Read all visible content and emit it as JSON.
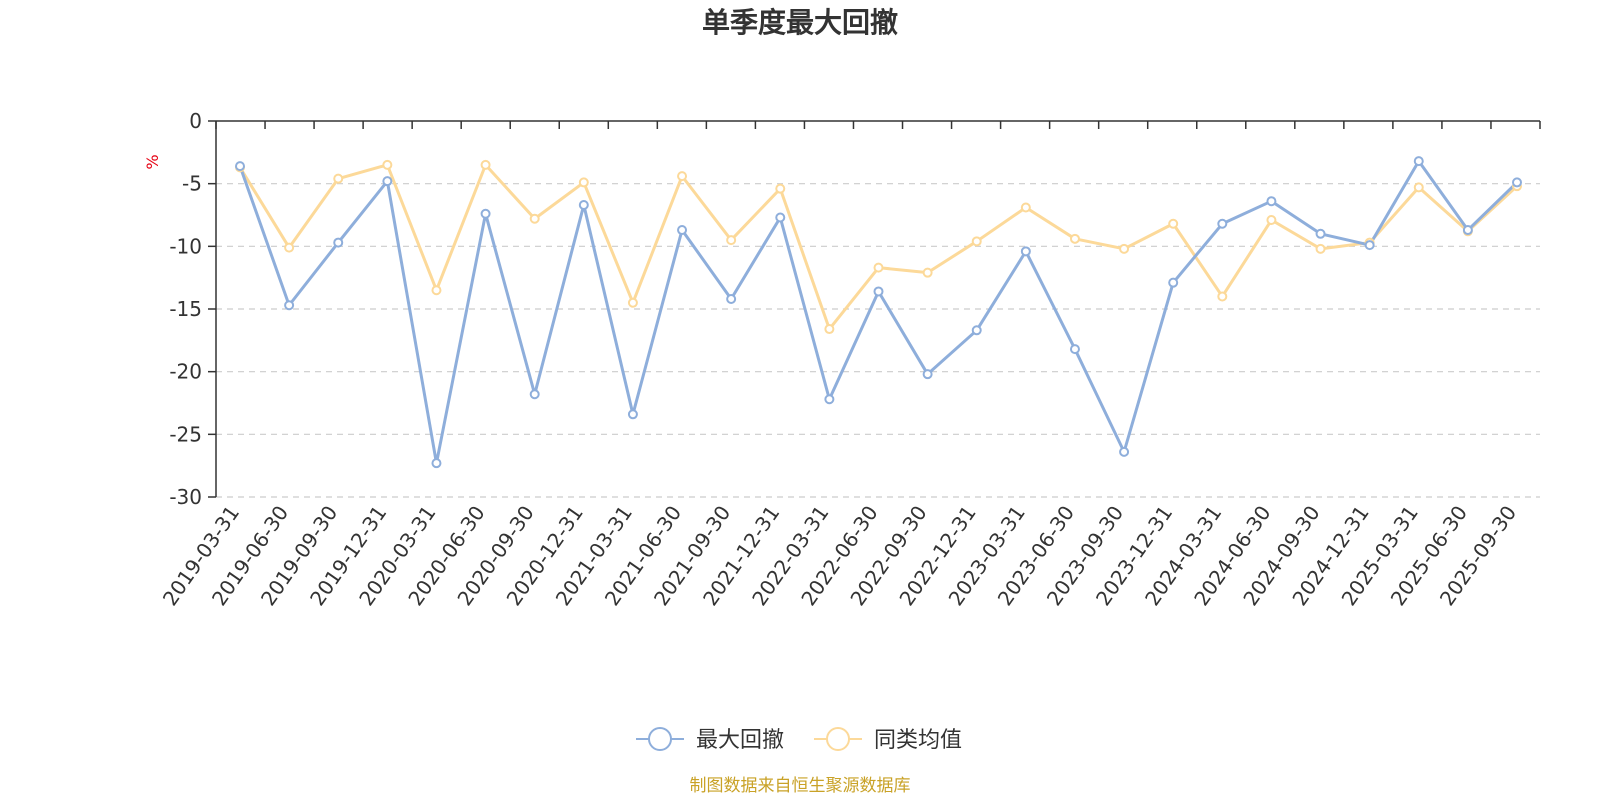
{
  "chart_data": {
    "type": "line",
    "title": "单季度最大回撤",
    "ylabel": "%",
    "ylim": [
      -30,
      0
    ],
    "yticks": [
      0,
      -5,
      -10,
      -15,
      -20,
      -25,
      -30
    ],
    "grid": true,
    "legend_position": "bottom",
    "categories": [
      "2019-03-31",
      "2019-06-30",
      "2019-09-30",
      "2019-12-31",
      "2020-03-31",
      "2020-06-30",
      "2020-09-30",
      "2020-12-31",
      "2021-03-31",
      "2021-06-30",
      "2021-09-30",
      "2021-12-31",
      "2022-03-31",
      "2022-06-30",
      "2022-09-30",
      "2022-12-31",
      "2023-03-31",
      "2023-06-30",
      "2023-09-30",
      "2023-12-31",
      "2024-03-31",
      "2024-06-30",
      "2024-09-30",
      "2024-12-31",
      "2025-03-31",
      "2025-06-30",
      "2025-09-30"
    ],
    "series": [
      {
        "name": "最大回撤",
        "color": "#8eaedb",
        "values": [
          -3.6,
          -14.7,
          -9.7,
          -4.8,
          -27.3,
          -7.4,
          -21.8,
          -6.7,
          -23.4,
          -8.7,
          -14.2,
          -7.7,
          -22.2,
          -13.6,
          -20.2,
          -16.7,
          -10.4,
          -18.2,
          -26.4,
          -12.9,
          -8.2,
          -6.4,
          -9.0,
          -9.9,
          -3.2,
          -8.7,
          -4.9
        ]
      },
      {
        "name": "同类均值",
        "color": "#fcd999",
        "values": [
          -3.7,
          -10.1,
          -4.6,
          -3.5,
          -13.5,
          -3.5,
          -7.8,
          -4.9,
          -14.5,
          -4.4,
          -9.5,
          -5.4,
          -16.6,
          -11.7,
          -12.1,
          -9.6,
          -6.9,
          -9.4,
          -10.2,
          -8.2,
          -14.0,
          -7.9,
          -10.2,
          -9.7,
          -5.3,
          -8.8,
          -5.2
        ]
      }
    ]
  },
  "source_note": "制图数据来自恒生聚源数据库"
}
